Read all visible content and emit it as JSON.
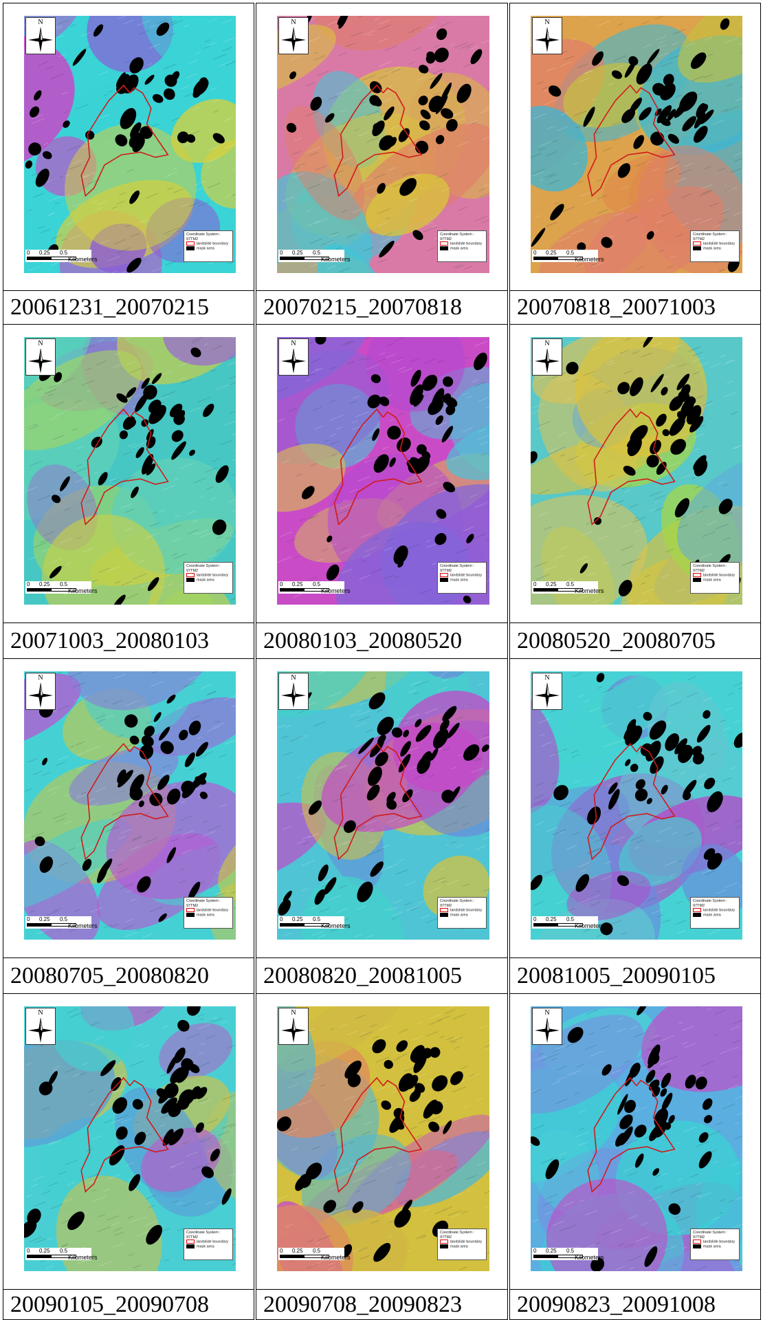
{
  "panels": [
    {
      "caption": "20061231_20070215",
      "palette": [
        "#3ad3d6",
        "#d43ec6",
        "#d6d03c",
        "#8b5bd6",
        "#3ad3d6"
      ]
    },
    {
      "caption": "20070215_20070818",
      "palette": [
        "#d97aa6",
        "#3fc7d8",
        "#d9c43c",
        "#e07d6a",
        "#d9a85a"
      ]
    },
    {
      "caption": "20070818_20071003",
      "palette": [
        "#dca24c",
        "#3bb6d6",
        "#e07f6a",
        "#c5c03e",
        "#e0864a"
      ]
    },
    {
      "caption": "20071003_20080103",
      "palette": [
        "#47c7c3",
        "#9a6ad0",
        "#c6cf4a",
        "#5fd0b8",
        "#a8d65a"
      ]
    },
    {
      "caption": "20080103_20080520",
      "palette": [
        "#c94cc6",
        "#4fc0d6",
        "#8366d8",
        "#d9c348",
        "#b44ad0"
      ]
    },
    {
      "caption": "20080520_20080705",
      "palette": [
        "#58c8c8",
        "#d9c23e",
        "#5fa6e0",
        "#a4d648",
        "#d8c35a"
      ]
    },
    {
      "caption": "20080705_20080820",
      "palette": [
        "#45d1d4",
        "#b45cd3",
        "#d0c63c",
        "#46cfd0",
        "#8a7ed8"
      ]
    },
    {
      "caption": "20080820_20081005",
      "palette": [
        "#4fc4d4",
        "#c448c8",
        "#d6c23e",
        "#44d0cc",
        "#6a86da"
      ]
    },
    {
      "caption": "20081005_20090105",
      "palette": [
        "#46d2d4",
        "#6c8adc",
        "#b648c8",
        "#44d2cf",
        "#5fc8d0"
      ]
    },
    {
      "caption": "20090105_20090708",
      "palette": [
        "#49cfd3",
        "#b65fc8",
        "#d0c248",
        "#44cfd0",
        "#5a9ed8"
      ]
    },
    {
      "caption": "20090708_20090823",
      "palette": [
        "#d2c03e",
        "#4fb8d6",
        "#e08a5c",
        "#c84cc6",
        "#d0b844"
      ]
    },
    {
      "caption": "20090823_20091008",
      "palette": [
        "#5aaee0",
        "#c04ec8",
        "#3bd0d4",
        "#7a8ee0",
        "#4ad0d6"
      ]
    }
  ],
  "map_common": {
    "north_label": "N",
    "scale_labels": [
      "0",
      "0.25",
      "0.5"
    ],
    "scale_unit": "Kilometers",
    "legend_title": "Coordinate System :",
    "legend_subtitle": "97TM2",
    "legend_items": [
      "landslide boundary",
      "mask area"
    ]
  },
  "colors": {
    "boundary": "#d11a1a",
    "mask": "#000000",
    "frame": "#000000"
  }
}
